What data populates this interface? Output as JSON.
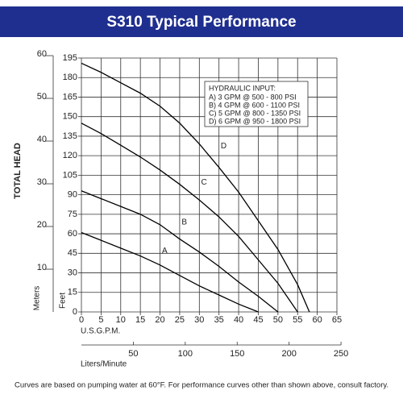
{
  "chart_data": {
    "type": "line",
    "title": "S310 Typical Performance",
    "y_label": "TOTAL HEAD",
    "y_unit_label": "Feet",
    "y2_unit_label": "Meters",
    "x_label": "U.S.G.P.M.",
    "x2_label": "Liters/Minute",
    "footnote": "Curves are based on pumping water at 60°F. For performance curves other than shown above, consult factory.",
    "legend_title": "HYDRAULIC INPUT:",
    "legend_entries": [
      "A) 3 GPM @ 500 - 800 PSI",
      "B) 4 GPM @ 600 - 1100 PSI",
      "C) 5 GPM @ 800 - 1350 PSI",
      "D) 6 GPM @ 950 - 1800 PSI"
    ],
    "xlim": [
      0,
      65
    ],
    "xticks": [
      0,
      5,
      10,
      15,
      20,
      25,
      30,
      35,
      40,
      45,
      50,
      55,
      60,
      65
    ],
    "ylim": [
      0,
      195
    ],
    "yticks": [
      0,
      15,
      30,
      45,
      60,
      75,
      90,
      105,
      120,
      135,
      150,
      165,
      180,
      195
    ],
    "y2lim": [
      0,
      59.44
    ],
    "y2ticks": [
      10,
      20,
      30,
      40,
      50,
      60
    ],
    "x2lim": [
      0,
      246.05
    ],
    "x2ticks": [
      50,
      100,
      150,
      200,
      250
    ],
    "grid": true,
    "series": [
      {
        "name": "A",
        "color": "#000000",
        "x": [
          0,
          5,
          10,
          15,
          20,
          25,
          30,
          35,
          40,
          45
        ],
        "values": [
          61,
          55,
          49,
          43,
          36,
          28,
          20,
          13,
          6,
          0
        ]
      },
      {
        "name": "B",
        "color": "#000000",
        "x": [
          0,
          5,
          10,
          15,
          20,
          25,
          30,
          35,
          40,
          45,
          50
        ],
        "values": [
          93,
          87,
          81,
          75,
          67,
          56,
          46,
          35,
          23,
          12,
          0
        ]
      },
      {
        "name": "C",
        "color": "#000000",
        "x": [
          0,
          5,
          10,
          15,
          20,
          25,
          30,
          35,
          40,
          45,
          50,
          55
        ],
        "values": [
          145,
          137,
          128,
          119,
          109,
          98,
          86,
          73,
          58,
          40,
          22,
          0
        ]
      },
      {
        "name": "D",
        "color": "#000000",
        "x": [
          0,
          5,
          10,
          15,
          20,
          25,
          30,
          35,
          40,
          45,
          50,
          55,
          58
        ],
        "values": [
          191,
          184,
          176,
          168,
          158,
          145,
          129,
          111,
          92,
          70,
          48,
          21,
          0
        ]
      }
    ]
  }
}
